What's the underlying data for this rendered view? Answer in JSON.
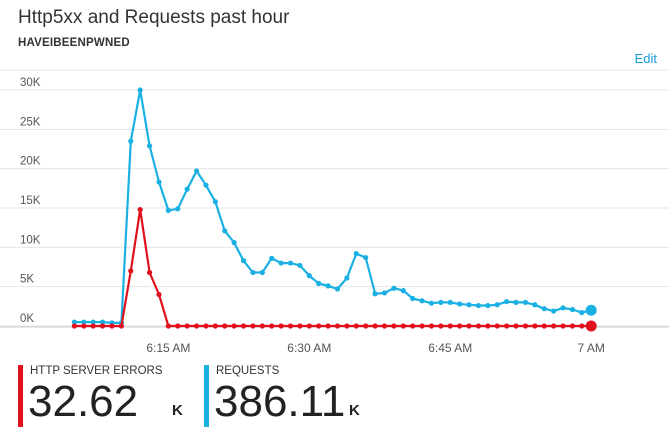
{
  "tile": {
    "title": "Http5xx and Requests past hour",
    "subtitle": "HAVEIBEENPWNED",
    "edit_label": "Edit"
  },
  "colors": {
    "errors": "#e0101d",
    "requests": "#1ab0e3",
    "gridline": "#e6e6e6",
    "axis_text": "#555555"
  },
  "chart_data": {
    "type": "line",
    "ylim": [
      0,
      30000
    ],
    "y_ticks": [
      0,
      5000,
      10000,
      15000,
      20000,
      25000,
      30000
    ],
    "y_tick_labels": [
      "0K",
      "5K",
      "10K",
      "15K",
      "20K",
      "25K",
      "30K"
    ],
    "x_range": [
      "06:04",
      "07:02"
    ],
    "x_ticks": [
      "06:15",
      "06:30",
      "06:45",
      "07:00"
    ],
    "x_tick_labels": [
      "6:15 AM",
      "6:30 AM",
      "6:45 AM",
      "7 AM"
    ],
    "series": [
      {
        "name": "REQUESTS",
        "color": "#1ab0e3",
        "x": [
          "06:05",
          "06:06",
          "06:07",
          "06:08",
          "06:09",
          "06:10",
          "06:11",
          "06:12",
          "06:13",
          "06:14",
          "06:15",
          "06:16",
          "06:17",
          "06:18",
          "06:19",
          "06:20",
          "06:21",
          "06:22",
          "06:23",
          "06:24",
          "06:25",
          "06:26",
          "06:27",
          "06:28",
          "06:29",
          "06:30",
          "06:31",
          "06:32",
          "06:33",
          "06:34",
          "06:35",
          "06:36",
          "06:37",
          "06:38",
          "06:39",
          "06:40",
          "06:41",
          "06:42",
          "06:43",
          "06:44",
          "06:45",
          "06:46",
          "06:47",
          "06:48",
          "06:49",
          "06:50",
          "06:51",
          "06:52",
          "06:53",
          "06:54",
          "06:55",
          "06:56",
          "06:57",
          "06:58",
          "06:59",
          "07:00"
        ],
        "values": [
          500,
          500,
          500,
          500,
          400,
          400,
          23500,
          30000,
          22900,
          18300,
          14700,
          14900,
          17400,
          19700,
          17900,
          15800,
          12100,
          10600,
          8300,
          6800,
          6800,
          8600,
          8000,
          8000,
          7700,
          6400,
          5400,
          5100,
          4700,
          6100,
          9200,
          8700,
          4100,
          4200,
          4800,
          4500,
          3500,
          3200,
          2900,
          3000,
          3000,
          2800,
          2700,
          2600,
          2600,
          2700,
          3100,
          3000,
          3000,
          2700,
          2200,
          1900,
          2300,
          2100,
          1700,
          2000
        ]
      },
      {
        "name": "HTTP SERVER ERRORS",
        "color": "#e0101d",
        "x": [
          "06:05",
          "06:06",
          "06:07",
          "06:08",
          "06:09",
          "06:10",
          "06:11",
          "06:12",
          "06:13",
          "06:14",
          "06:15",
          "06:16",
          "06:17",
          "06:18",
          "06:19",
          "06:20",
          "06:21",
          "06:22",
          "06:23",
          "06:24",
          "06:25",
          "06:26",
          "06:27",
          "06:28",
          "06:29",
          "06:30",
          "06:31",
          "06:32",
          "06:33",
          "06:34",
          "06:35",
          "06:36",
          "06:37",
          "06:38",
          "06:39",
          "06:40",
          "06:41",
          "06:42",
          "06:43",
          "06:44",
          "06:45",
          "06:46",
          "06:47",
          "06:48",
          "06:49",
          "06:50",
          "06:51",
          "06:52",
          "06:53",
          "06:54",
          "06:55",
          "06:56",
          "06:57",
          "06:58",
          "06:59",
          "07:00"
        ],
        "values": [
          0,
          0,
          0,
          0,
          0,
          0,
          7000,
          14800,
          6800,
          4000,
          0,
          0,
          0,
          0,
          0,
          0,
          0,
          0,
          0,
          0,
          0,
          0,
          0,
          0,
          0,
          0,
          0,
          0,
          0,
          0,
          0,
          0,
          0,
          0,
          0,
          0,
          0,
          0,
          0,
          0,
          0,
          0,
          0,
          0,
          0,
          0,
          0,
          0,
          0,
          0,
          0,
          0,
          0,
          0,
          0,
          0
        ]
      }
    ]
  },
  "metrics": [
    {
      "label": "HTTP SERVER ERRORS",
      "value": "32.62",
      "unit": "K",
      "color": "#e0101d"
    },
    {
      "label": "REQUESTS",
      "value": "386.11",
      "unit": "K",
      "color": "#1ab0e3"
    }
  ]
}
